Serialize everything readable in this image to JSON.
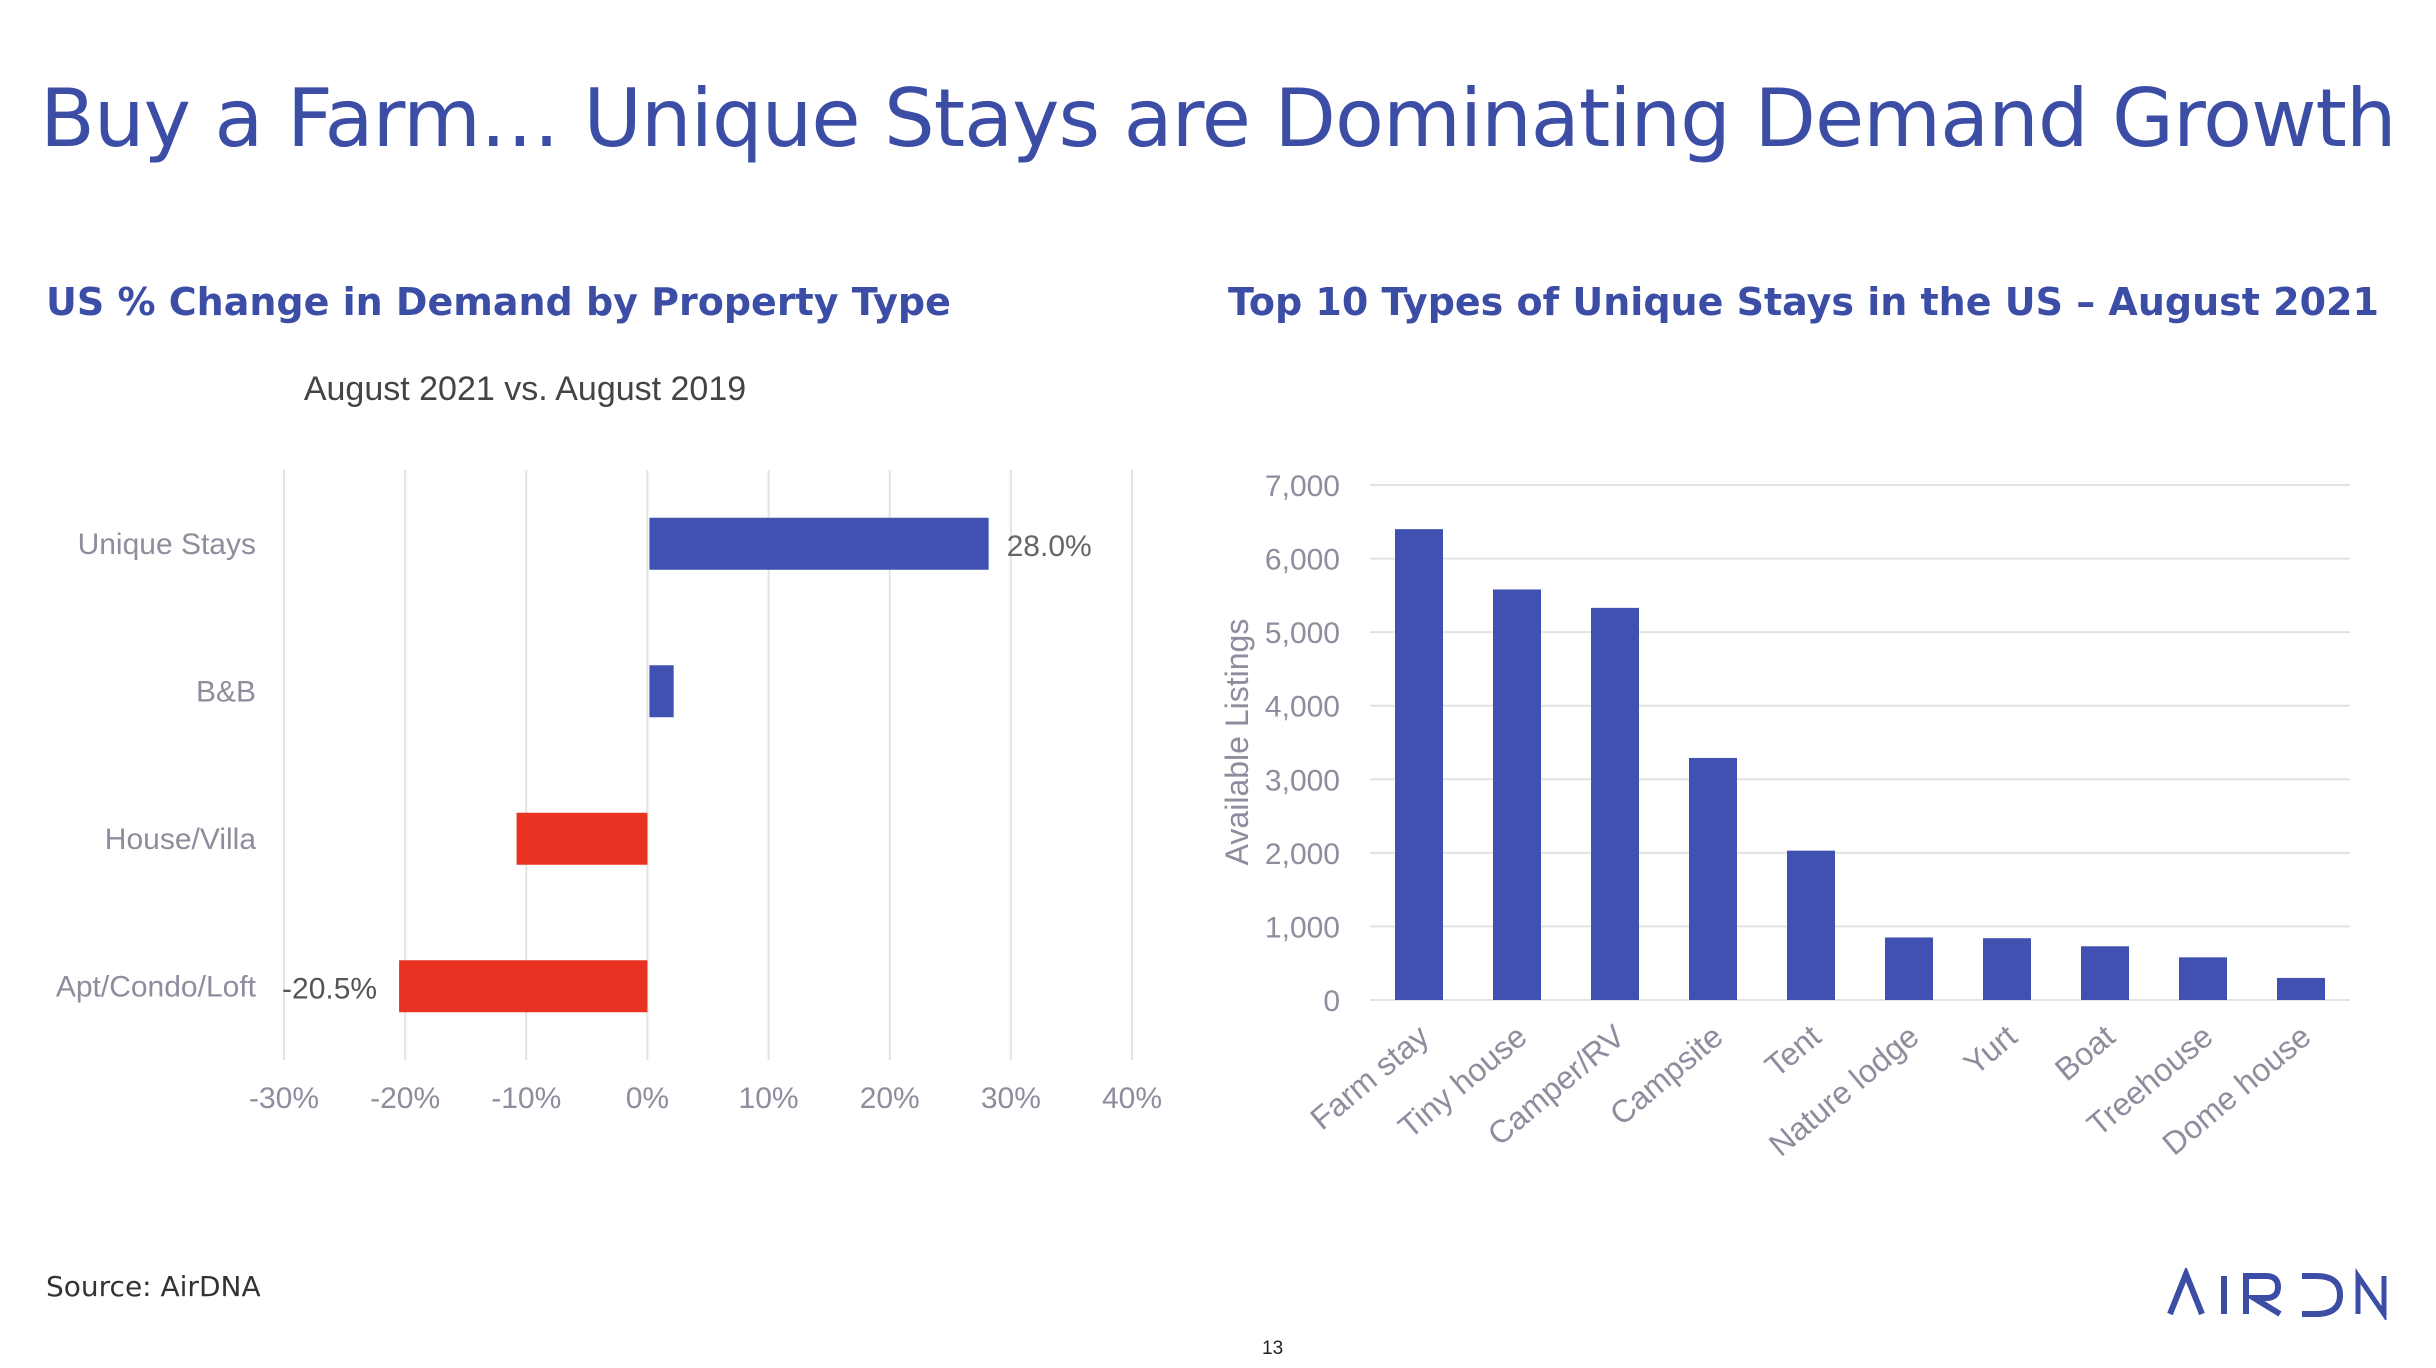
{
  "slide": {
    "title": "Buy a Farm… Unique Stays are Dominating Demand Growth",
    "left_heading": "US % Change in Demand by Property Type",
    "right_heading": "Top 10 Types of Unique Stays in the US – August 2021",
    "source": "Source: AirDNA",
    "page_number": "13",
    "logo_text": "AIRDNA"
  },
  "colors": {
    "heading": "#3C4DA6",
    "positive_bar": "#4051B2",
    "negative_bar": "#E83323",
    "axis_text": "#8C8E9E",
    "grid": "#E3E3E3"
  },
  "chart_data": [
    {
      "type": "bar",
      "orientation": "horizontal",
      "title": "August 2021 vs. August 2019",
      "categories": [
        "Unique Stays",
        "B&B",
        "House/Villa",
        "Apt/Condo/Loft"
      ],
      "values": [
        28.0,
        2.0,
        -10.8,
        -20.5
      ],
      "data_labels": [
        "28.0%",
        "",
        "",
        "-20.5%"
      ],
      "xlim": [
        -30,
        40
      ],
      "xticks": [
        -30,
        -20,
        -10,
        0,
        10,
        20,
        30,
        40
      ],
      "xtick_labels": [
        "-30%",
        "-20%",
        "-10%",
        "0%",
        "10%",
        "20%",
        "30%",
        "40%"
      ],
      "grid": true
    },
    {
      "type": "bar",
      "orientation": "vertical",
      "title": "",
      "ylabel": "Available Listings",
      "categories": [
        "Farm stay",
        "Tiny house",
        "Camper/RV",
        "Campsite",
        "Tent",
        "Nature lodge",
        "Yurt",
        "Boat",
        "Treehouse",
        "Dome house"
      ],
      "values": [
        6400,
        5580,
        5330,
        3290,
        2030,
        850,
        840,
        730,
        580,
        300
      ],
      "ylim": [
        0,
        7000
      ],
      "yticks": [
        0,
        1000,
        2000,
        3000,
        4000,
        5000,
        6000,
        7000
      ],
      "ytick_labels": [
        "0",
        "1,000",
        "2,000",
        "3,000",
        "4,000",
        "5,000",
        "6,000",
        "7,000"
      ],
      "grid": true
    }
  ]
}
